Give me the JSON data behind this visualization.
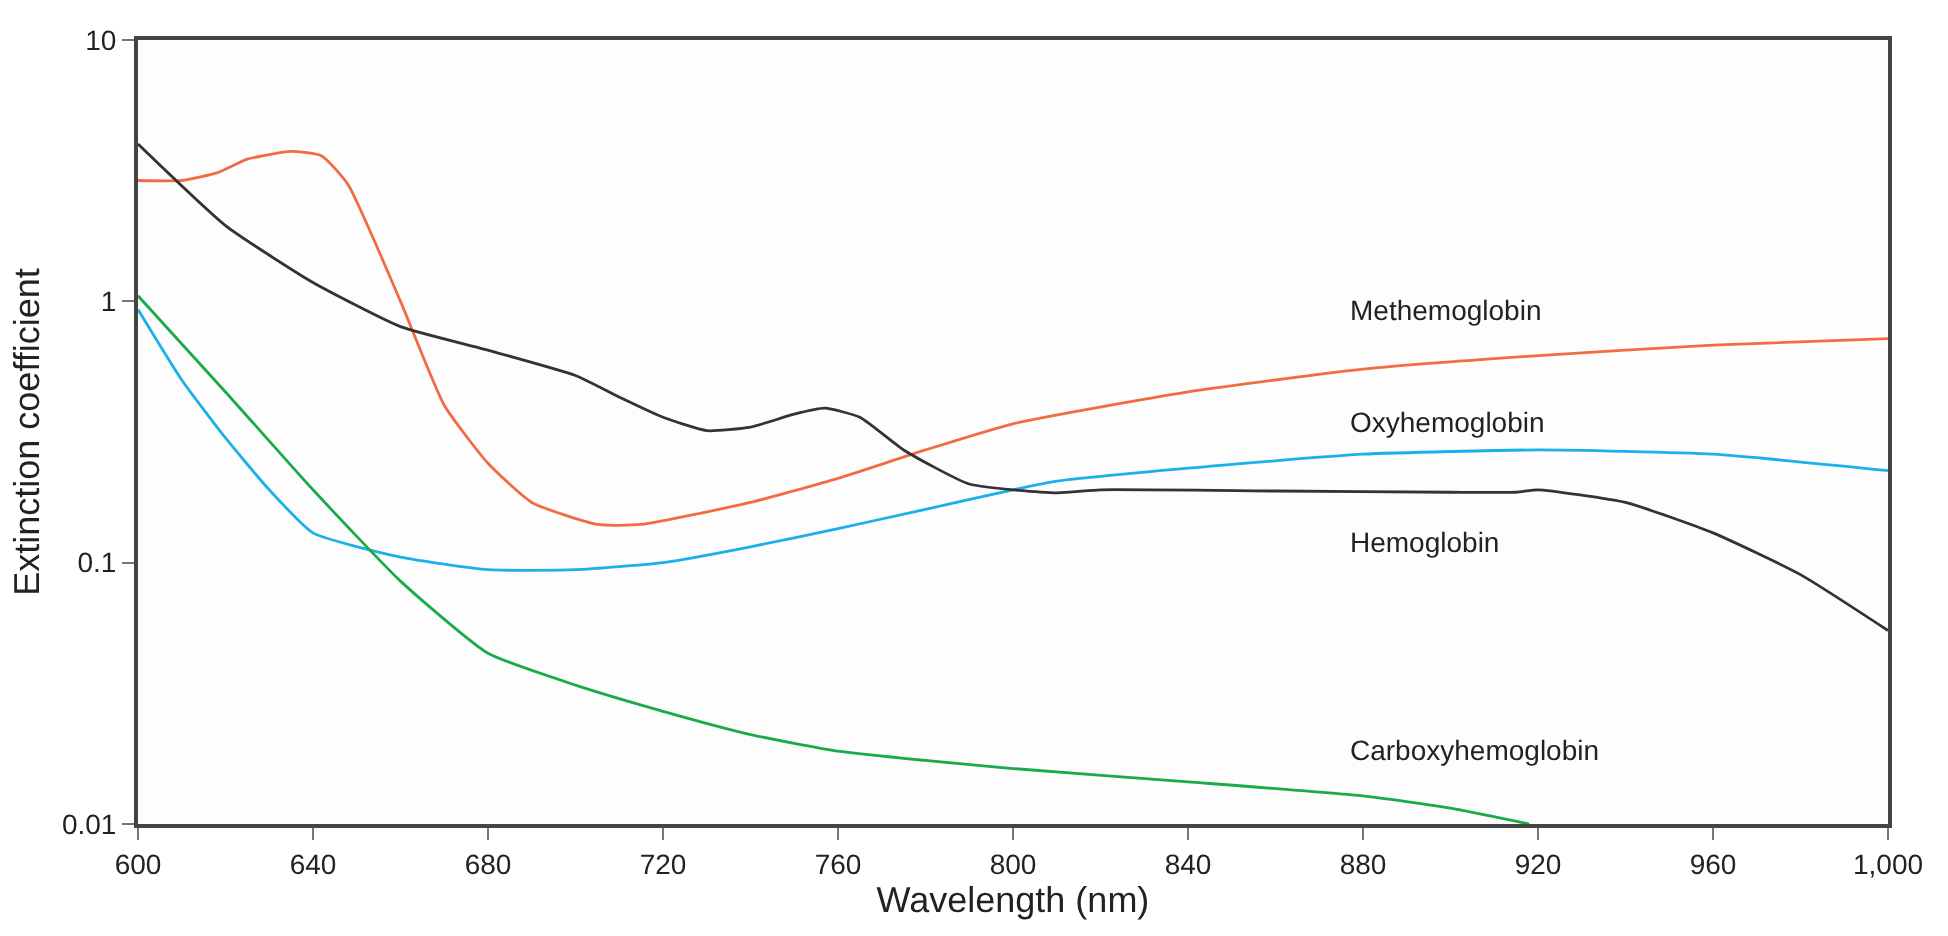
{
  "chart_data": {
    "type": "line",
    "xlabel": "Wavelength (nm)",
    "ylabel": "Extinction coefficient",
    "log": "y",
    "legend": false,
    "marker": "none",
    "line_style": "solid",
    "xlim": [
      600,
      1000
    ],
    "xticks": [
      600,
      640,
      680,
      720,
      760,
      800,
      840,
      880,
      920,
      960,
      {
        "value": 1000,
        "label": "1,000"
      }
    ],
    "ylim": [
      0.01,
      10
    ],
    "yticks": [
      0.01,
      0.1,
      1,
      10
    ],
    "series": [
      {
        "name": "Methemoglobin",
        "color": "#f26b43",
        "x": [
          600,
          610,
          618,
          625,
          635,
          642,
          648,
          660,
          670,
          680,
          690,
          705,
          715,
          740,
          760,
          780,
          800,
          840,
          880,
          920,
          960,
          1000
        ],
        "values": [
          2.9,
          2.9,
          3.1,
          3.5,
          3.75,
          3.6,
          2.8,
          1.0,
          0.4,
          0.24,
          0.17,
          0.14,
          0.14,
          0.17,
          0.21,
          0.27,
          0.34,
          0.45,
          0.55,
          0.62,
          0.68,
          0.72
        ]
      },
      {
        "name": "Oxyhemoglobin",
        "color": "#1ab0e8",
        "x": [
          600,
          610,
          620,
          630,
          640,
          660,
          680,
          700,
          720,
          740,
          760,
          780,
          800,
          810,
          840,
          880,
          920,
          960,
          1000
        ],
        "values": [
          0.93,
          0.5,
          0.3,
          0.19,
          0.13,
          0.105,
          0.094,
          0.094,
          0.1,
          0.115,
          0.135,
          0.16,
          0.19,
          0.205,
          0.23,
          0.26,
          0.27,
          0.26,
          0.225
        ]
      },
      {
        "name": "Hemoglobin",
        "color": "#333333",
        "x": [
          600,
          620,
          640,
          660,
          680,
          700,
          710,
          720,
          730,
          740,
          750,
          757,
          765,
          775,
          790,
          810,
          820,
          860,
          900,
          915,
          920,
          940,
          960,
          980,
          1000
        ],
        "values": [
          4.0,
          1.95,
          1.18,
          0.8,
          0.65,
          0.52,
          0.43,
          0.36,
          0.32,
          0.33,
          0.37,
          0.39,
          0.36,
          0.27,
          0.2,
          0.185,
          0.19,
          0.188,
          0.186,
          0.186,
          0.19,
          0.17,
          0.13,
          0.09,
          0.055
        ]
      },
      {
        "name": "Carboxyhemoglobin",
        "color": "#1aaa4a",
        "x": [
          600,
          620,
          640,
          660,
          680,
          700,
          720,
          740,
          760,
          780,
          800,
          840,
          880,
          900,
          918
        ],
        "values": [
          1.05,
          0.45,
          0.19,
          0.085,
          0.045,
          0.034,
          0.027,
          0.022,
          0.019,
          0.0175,
          0.0163,
          0.0145,
          0.0128,
          0.0115,
          0.01
        ]
      }
    ]
  }
}
